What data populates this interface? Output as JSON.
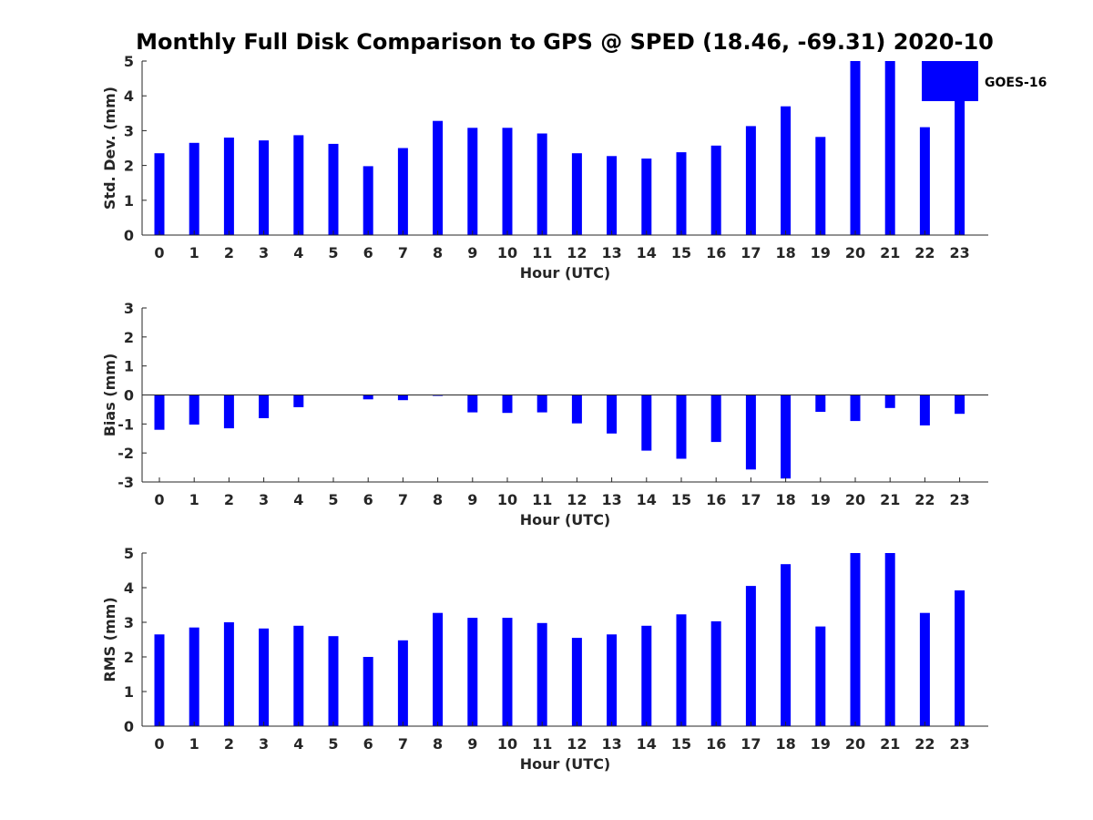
{
  "title": "Monthly Full Disk Comparison to GPS @ SPED (18.46, -69.31) 2020-10",
  "legend": {
    "label": "GOES-16",
    "color": "#0000ff"
  },
  "chart_data": [
    {
      "type": "bar",
      "name": "std-dev",
      "ylabel": "Std. Dev. (mm)",
      "xlabel": "Hour (UTC)",
      "ylim": [
        0,
        5
      ],
      "yticks": [
        "0",
        "1",
        "2",
        "3",
        "4",
        "5"
      ],
      "categories": [
        "0",
        "1",
        "2",
        "3",
        "4",
        "5",
        "6",
        "7",
        "8",
        "9",
        "10",
        "11",
        "12",
        "13",
        "14",
        "15",
        "16",
        "17",
        "18",
        "19",
        "20",
        "21",
        "22",
        "23"
      ],
      "values": [
        2.35,
        2.65,
        2.8,
        2.72,
        2.87,
        2.62,
        1.98,
        2.5,
        3.28,
        3.08,
        3.08,
        2.92,
        2.35,
        2.27,
        2.2,
        2.38,
        2.57,
        3.13,
        3.7,
        2.82,
        5.0,
        5.0,
        3.1,
        3.85
      ],
      "color": "#0000ff"
    },
    {
      "type": "bar",
      "name": "bias",
      "ylabel": "Bias (mm)",
      "xlabel": "Hour (UTC)",
      "ylim": [
        -3,
        3
      ],
      "yticks": [
        "-3",
        "-2",
        "-1",
        "0",
        "1",
        "2",
        "3"
      ],
      "categories": [
        "0",
        "1",
        "2",
        "3",
        "4",
        "5",
        "6",
        "7",
        "8",
        "9",
        "10",
        "11",
        "12",
        "13",
        "14",
        "15",
        "16",
        "17",
        "18",
        "19",
        "20",
        "21",
        "22",
        "23"
      ],
      "values": [
        -1.2,
        -1.02,
        -1.15,
        -0.8,
        -0.42,
        0.0,
        -0.15,
        -0.18,
        -0.03,
        -0.6,
        -0.62,
        -0.6,
        -0.98,
        -1.33,
        -1.92,
        -2.2,
        -1.62,
        -2.57,
        -2.88,
        -0.58,
        -0.9,
        -0.45,
        -1.05,
        -0.65
      ],
      "color": "#0000ff"
    },
    {
      "type": "bar",
      "name": "rms",
      "ylabel": "RMS (mm)",
      "xlabel": "Hour (UTC)",
      "ylim": [
        0,
        5
      ],
      "yticks": [
        "0",
        "1",
        "2",
        "3",
        "4",
        "5"
      ],
      "categories": [
        "0",
        "1",
        "2",
        "3",
        "4",
        "5",
        "6",
        "7",
        "8",
        "9",
        "10",
        "11",
        "12",
        "13",
        "14",
        "15",
        "16",
        "17",
        "18",
        "19",
        "20",
        "21",
        "22",
        "23"
      ],
      "values": [
        2.65,
        2.85,
        3.0,
        2.82,
        2.9,
        2.6,
        2.0,
        2.48,
        3.27,
        3.13,
        3.13,
        2.98,
        2.55,
        2.65,
        2.9,
        3.23,
        3.03,
        4.05,
        4.68,
        2.88,
        5.0,
        5.0,
        3.27,
        3.92
      ],
      "color": "#0000ff"
    }
  ]
}
